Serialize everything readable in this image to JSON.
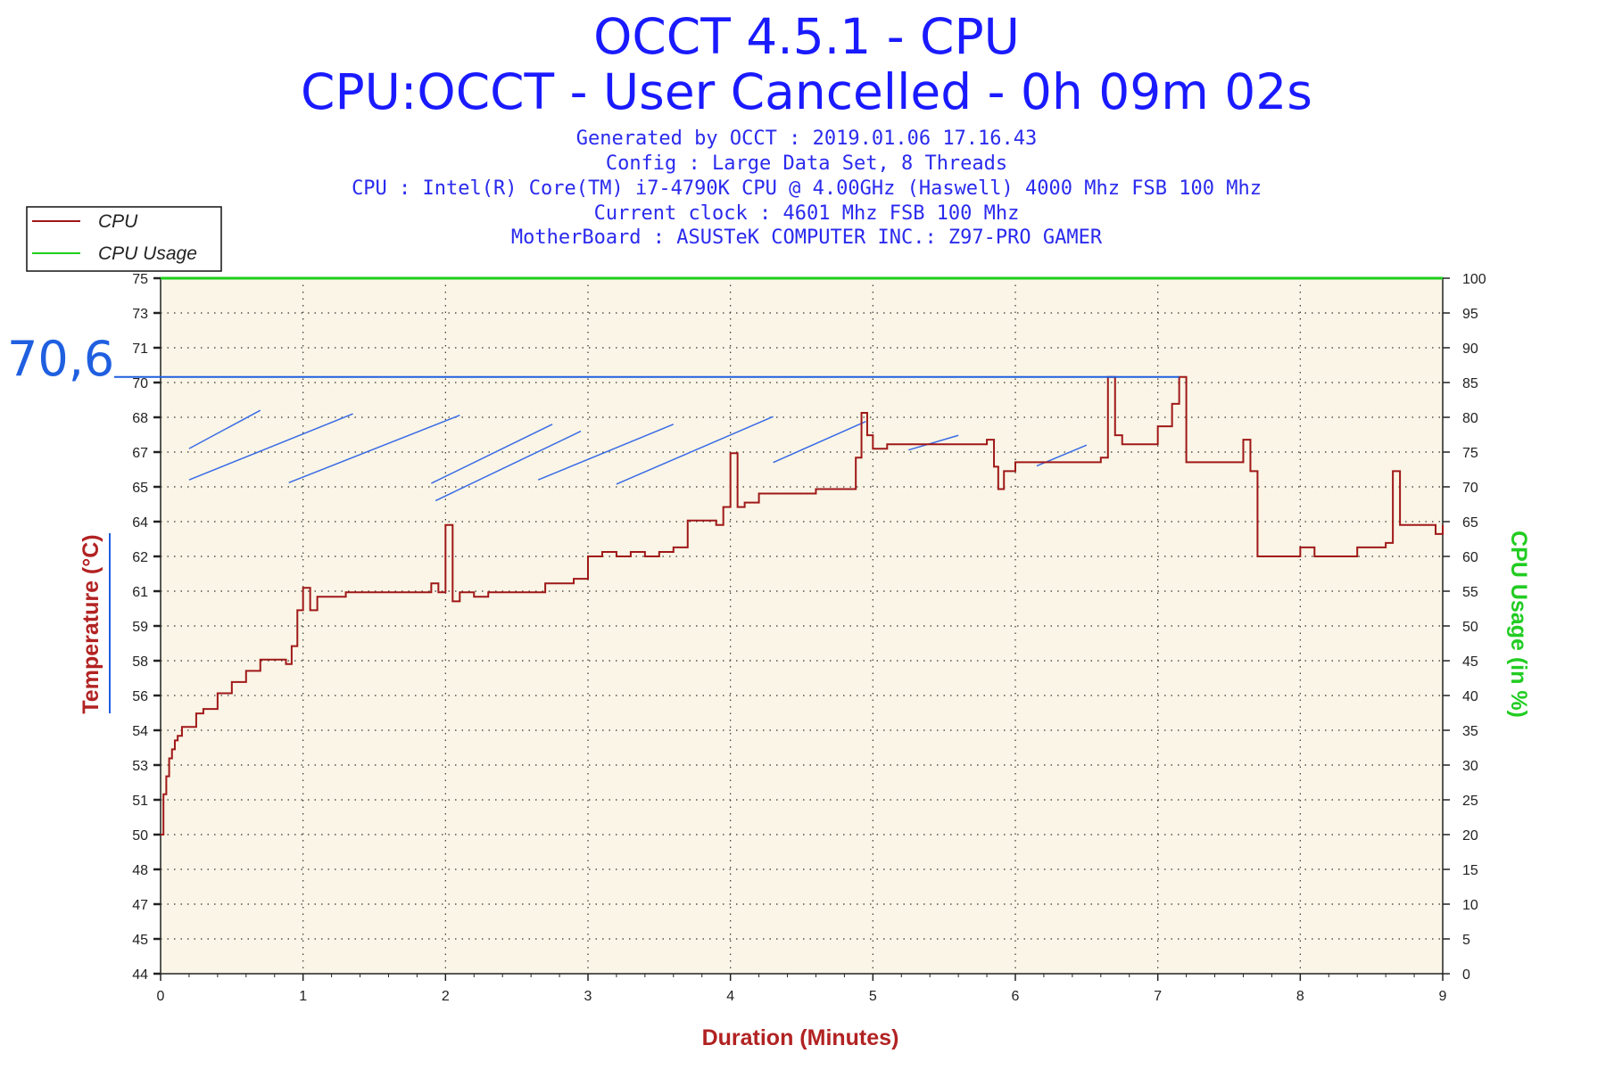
{
  "chart_data": {
    "type": "line",
    "title": "OCCT 4.5.1 - CPU",
    "subtitle": "CPU:OCCT - User Cancelled - 0h 09m 02s",
    "info_lines": [
      "Generated by OCCT : 2019.01.06 17.16.43",
      "Config : Large Data Set, 8 Threads",
      "CPU : Intel(R) Core(TM) i7-4790K CPU @ 4.00GHz (Haswell) 4000 Mhz FSB 100 Mhz",
      "Current clock : 4601 Mhz FSB 100 Mhz",
      "MotherBoard : ASUSTeK COMPUTER INC.: Z97-PRO GAMER"
    ],
    "xlabel": "Duration (Minutes)",
    "ylabel_left": "Temperature (°C)",
    "ylabel_right": "CPU Usage (in %)",
    "xlim": [
      0,
      9
    ],
    "ylim_left": [
      44,
      75
    ],
    "ylim_right": [
      0,
      100
    ],
    "x_ticks": [
      "0",
      "1",
      "2",
      "3",
      "4",
      "5",
      "6",
      "7",
      "8",
      "9"
    ],
    "y_left_ticks": [
      "44",
      "45",
      "47",
      "48",
      "50",
      "51",
      "53",
      "54",
      "56",
      "58",
      "59",
      "61",
      "62",
      "64",
      "65",
      "67",
      "68",
      "70",
      "71",
      "73",
      "75"
    ],
    "y_right_ticks": [
      "0",
      "5",
      "10",
      "15",
      "20",
      "25",
      "30",
      "35",
      "40",
      "45",
      "50",
      "55",
      "60",
      "65",
      "70",
      "75",
      "80",
      "85",
      "90",
      "95",
      "100"
    ],
    "grid": true,
    "legend_position": "top-left",
    "colors": {
      "cpu": "#a01818",
      "cpu_usage": "#1ccf1c",
      "plot_bg": "#faf5e6",
      "title": "#1a1aff",
      "xlabel": "#b22222",
      "ylabel_left": "#b22222",
      "ylabel_right": "#22cc22",
      "annotation": "#1f5fe0"
    },
    "series": [
      {
        "name": "CPU",
        "axis": "left",
        "x": [
          0,
          0.02,
          0.04,
          0.06,
          0.08,
          0.1,
          0.12,
          0.15,
          0.2,
          0.25,
          0.3,
          0.35,
          0.4,
          0.5,
          0.6,
          0.7,
          0.8,
          0.88,
          0.92,
          0.96,
          1.0,
          1.05,
          1.1,
          1.2,
          1.3,
          1.4,
          1.5,
          1.6,
          1.7,
          1.8,
          1.9,
          1.95,
          2.0,
          2.05,
          2.1,
          2.2,
          2.3,
          2.4,
          2.5,
          2.6,
          2.7,
          2.8,
          2.9,
          3.0,
          3.1,
          3.2,
          3.3,
          3.4,
          3.5,
          3.6,
          3.7,
          3.8,
          3.9,
          3.95,
          4.0,
          4.05,
          4.1,
          4.2,
          4.3,
          4.4,
          4.5,
          4.6,
          4.7,
          4.8,
          4.88,
          4.92,
          4.96,
          5.0,
          5.1,
          5.2,
          5.3,
          5.4,
          5.5,
          5.6,
          5.7,
          5.8,
          5.85,
          5.88,
          5.92,
          6.0,
          6.1,
          6.2,
          6.3,
          6.4,
          6.5,
          6.6,
          6.65,
          6.7,
          6.75,
          6.8,
          6.9,
          7.0,
          7.1,
          7.15,
          7.2,
          7.3,
          7.4,
          7.5,
          7.6,
          7.65,
          7.7,
          7.75,
          7.8,
          7.9,
          8.0,
          8.1,
          8.2,
          8.3,
          8.4,
          8.5,
          8.6,
          8.65,
          8.7,
          8.8,
          8.9,
          8.95,
          9.0
        ],
        "y": [
          50.2,
          52.0,
          52.8,
          53.6,
          54.0,
          54.4,
          54.6,
          55.0,
          55.0,
          55.6,
          55.8,
          55.8,
          56.5,
          57.0,
          57.5,
          58.0,
          58.0,
          57.8,
          58.6,
          60.2,
          61.2,
          60.2,
          60.8,
          60.8,
          61.0,
          61.0,
          61.0,
          61.0,
          61.0,
          61.0,
          61.4,
          61.0,
          64.0,
          60.6,
          61.0,
          60.8,
          61.0,
          61.0,
          61.0,
          61.0,
          61.4,
          61.4,
          61.6,
          62.6,
          62.8,
          62.6,
          62.8,
          62.6,
          62.8,
          63.0,
          64.2,
          64.2,
          64.0,
          64.8,
          67.2,
          64.8,
          65.0,
          65.4,
          65.4,
          65.4,
          65.4,
          65.6,
          65.6,
          65.6,
          67.0,
          69.0,
          68.0,
          67.4,
          67.6,
          67.6,
          67.6,
          67.6,
          67.6,
          67.6,
          67.6,
          67.8,
          66.6,
          65.6,
          66.4,
          66.8,
          66.8,
          66.8,
          66.8,
          66.8,
          66.8,
          67.0,
          70.6,
          68.0,
          67.6,
          67.6,
          67.6,
          68.4,
          69.4,
          70.6,
          66.8,
          66.8,
          66.8,
          66.8,
          67.8,
          66.4,
          62.6,
          62.6,
          62.6,
          62.6,
          63.0,
          62.6,
          62.6,
          62.6,
          63.0,
          63.0,
          63.2,
          66.4,
          64.0,
          64.0,
          64.0,
          63.6,
          64.0
        ]
      },
      {
        "name": "CPU Usage",
        "axis": "right",
        "x": [
          0,
          9
        ],
        "y": [
          100,
          100
        ]
      }
    ],
    "annotations": [
      {
        "label": "70,6",
        "type": "hline",
        "axis": "left",
        "y": 70.6,
        "x_end": 7.15
      }
    ]
  }
}
